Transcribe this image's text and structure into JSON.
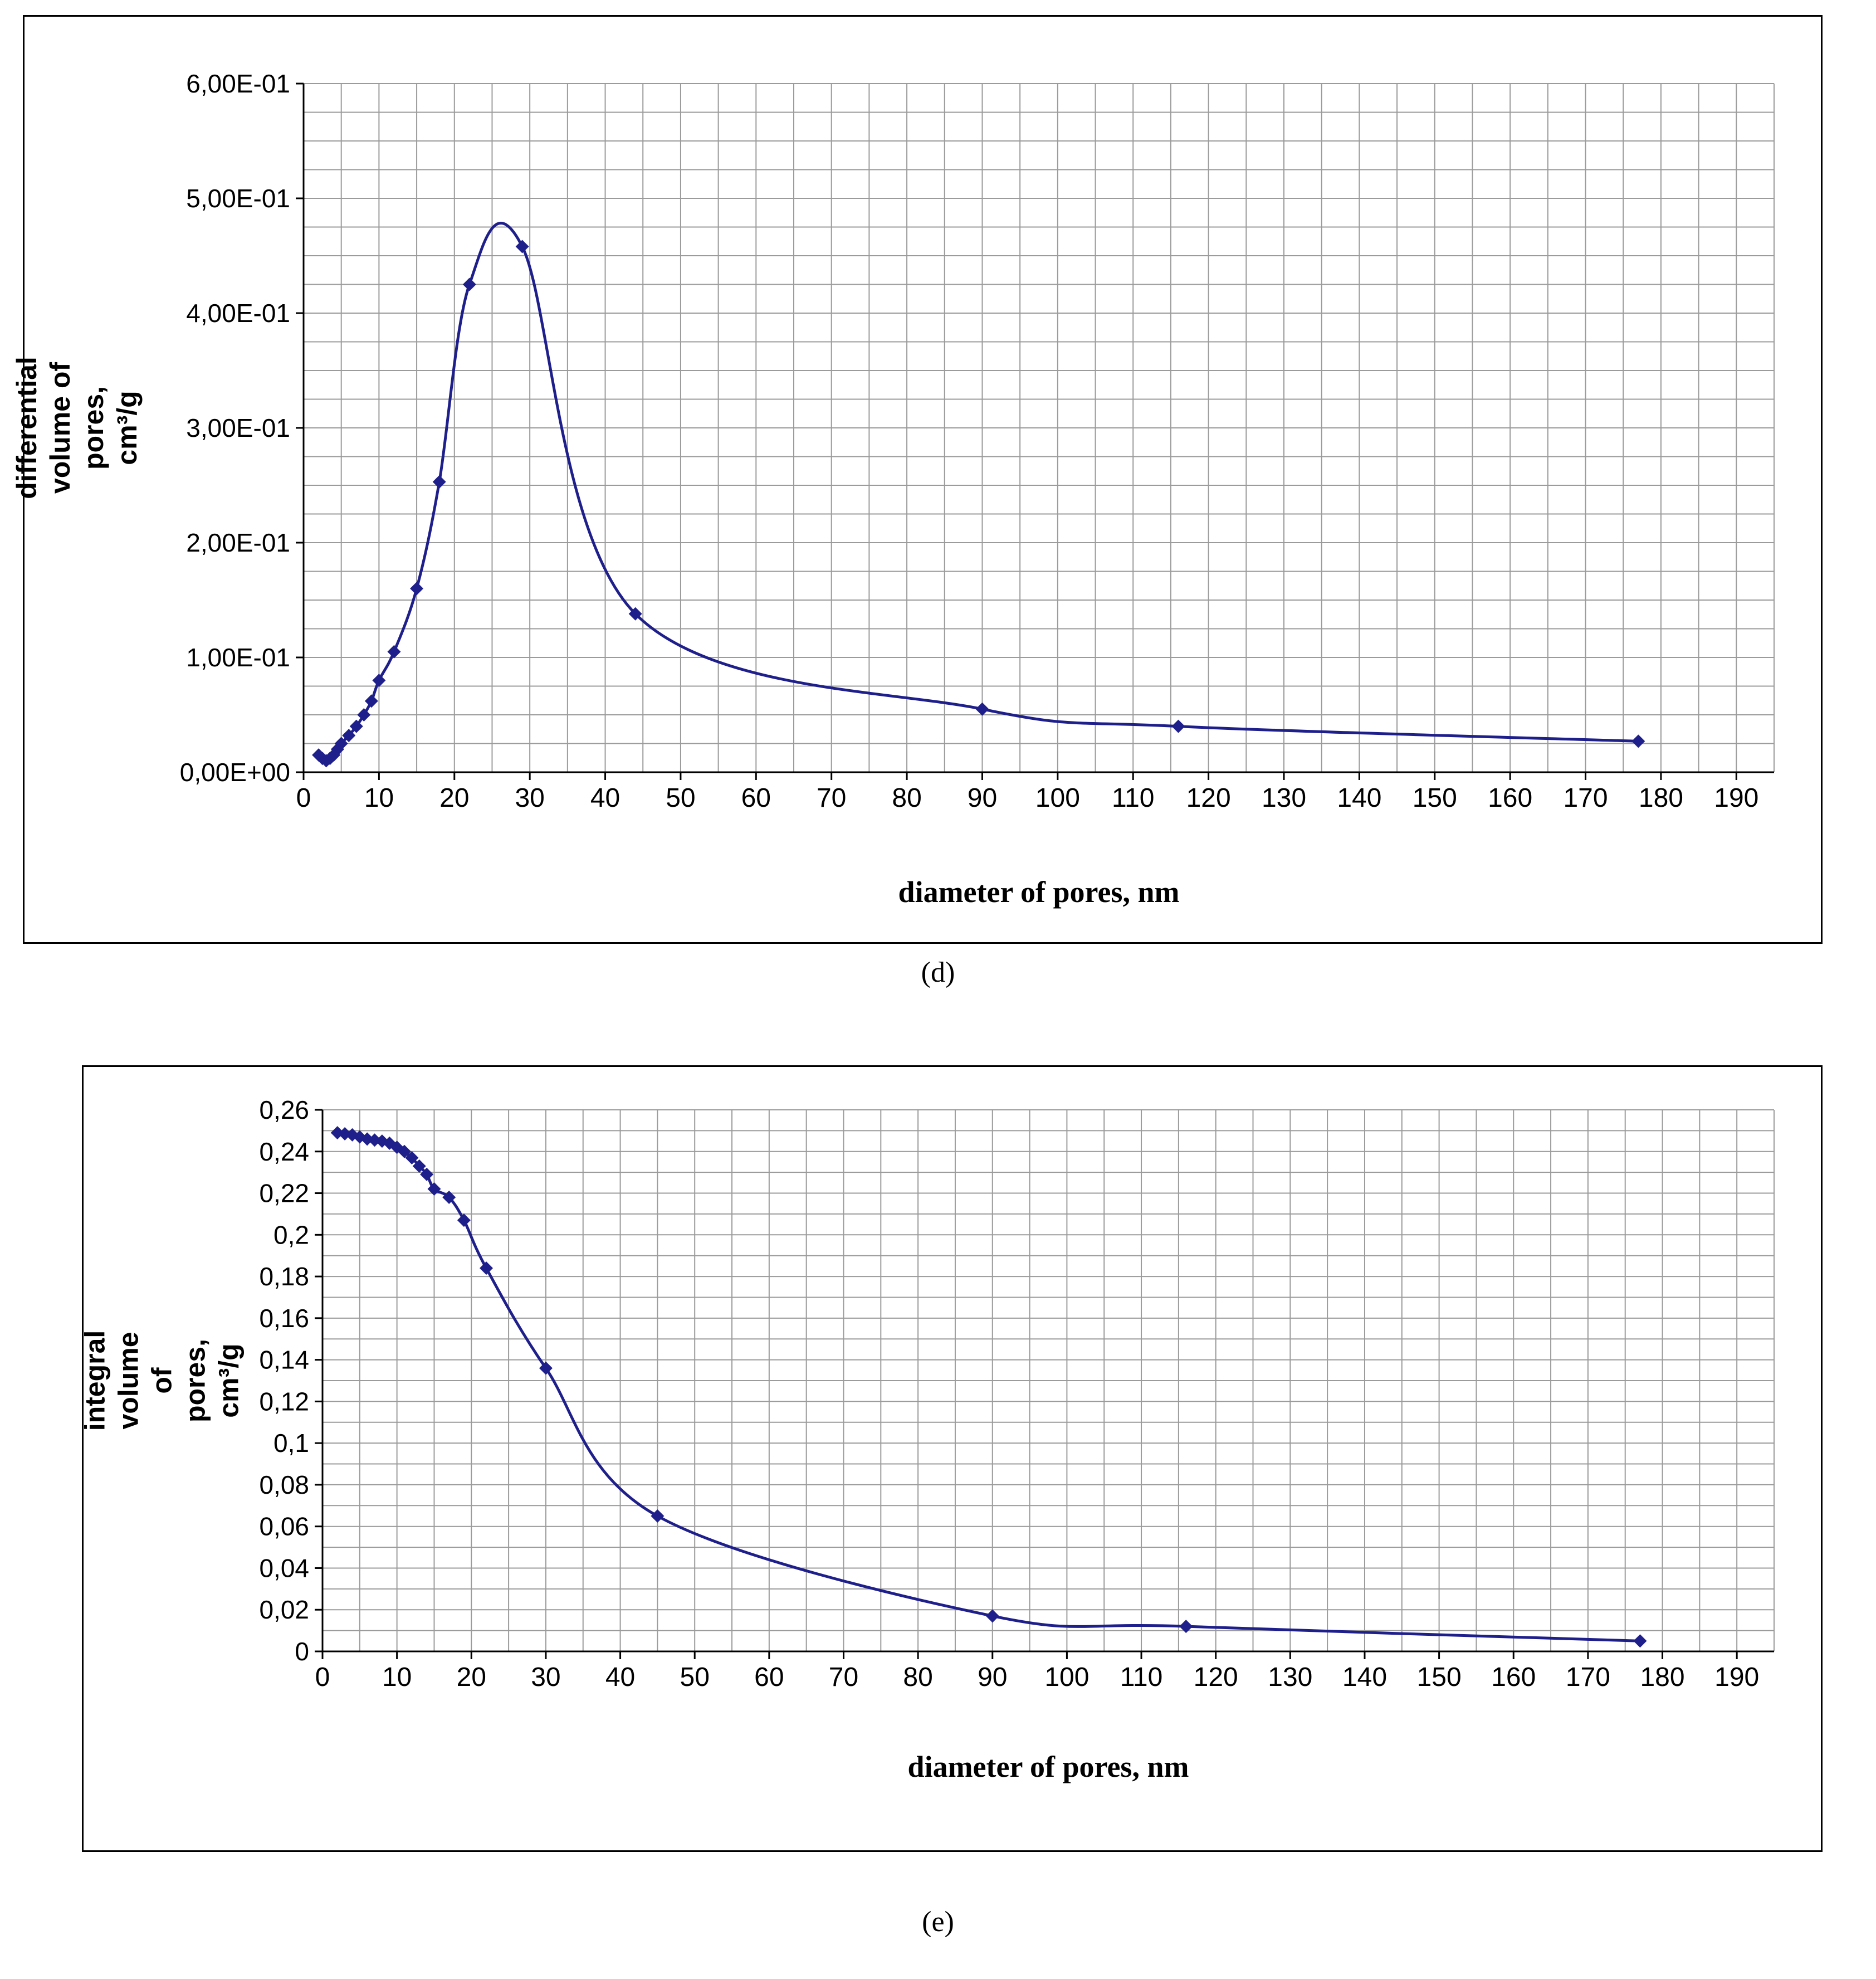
{
  "figure": {
    "captions": [
      "(d)",
      "(e)"
    ]
  },
  "chart_data": [
    {
      "type": "line",
      "title": "",
      "xlabel": "diameter of pores, nm",
      "ylabel": "differential volume of pores, cm³/g",
      "xlim": [
        0,
        195
      ],
      "ylim": [
        0,
        0.6
      ],
      "x_minor": 5,
      "y_minor": 0.025,
      "grid": true,
      "legend": "none",
      "marker": "diamond",
      "color": "#1f1f8c",
      "x_ticks": [
        0,
        10,
        20,
        30,
        40,
        50,
        60,
        70,
        80,
        90,
        100,
        110,
        120,
        130,
        140,
        150,
        160,
        170,
        180,
        190
      ],
      "y_ticks": {
        "values": [
          0,
          0.1,
          0.2,
          0.3,
          0.4,
          0.5,
          0.6
        ],
        "labels": [
          "0,00E+00",
          "1,00E-01",
          "2,00E-01",
          "3,00E-01",
          "4,00E-01",
          "5,00E-01",
          "6,00E-01"
        ]
      },
      "x": [
        2,
        2.5,
        3,
        3.5,
        4,
        4.5,
        5,
        6,
        7,
        8,
        9,
        10,
        12,
        15,
        18,
        22,
        29,
        44,
        90,
        116,
        177
      ],
      "y": [
        0.015,
        0.012,
        0.01,
        0.012,
        0.015,
        0.02,
        0.025,
        0.032,
        0.04,
        0.05,
        0.062,
        0.08,
        0.105,
        0.16,
        0.253,
        0.425,
        0.458,
        0.138,
        0.055,
        0.04,
        0.027
      ]
    },
    {
      "type": "line",
      "title": "",
      "xlabel": "diameter of pores, nm",
      "ylabel": "integral volume of pores,\ncm³/g",
      "xlim": [
        0,
        195
      ],
      "ylim": [
        0,
        0.26
      ],
      "x_minor": 5,
      "y_minor": 0.01,
      "grid": true,
      "legend": "none",
      "marker": "diamond",
      "color": "#1f1f8c",
      "x_ticks": [
        0,
        10,
        20,
        30,
        40,
        50,
        60,
        70,
        80,
        90,
        100,
        110,
        120,
        130,
        140,
        150,
        160,
        170,
        180,
        190
      ],
      "y_ticks": {
        "values": [
          0,
          0.02,
          0.04,
          0.06,
          0.08,
          0.1,
          0.12,
          0.14,
          0.16,
          0.18,
          0.2,
          0.22,
          0.24,
          0.26
        ],
        "labels": [
          "0",
          "0,02",
          "0,04",
          "0,06",
          "0,08",
          "0,1",
          "0,12",
          "0,14",
          "0,16",
          "0,18",
          "0,2",
          "0,22",
          "0,24",
          "0,26"
        ]
      },
      "x": [
        2,
        3,
        4,
        5,
        6,
        7,
        8,
        9,
        10,
        11,
        12,
        13,
        14,
        15,
        17,
        19,
        22,
        30,
        45,
        90,
        116,
        177
      ],
      "y": [
        0.249,
        0.2485,
        0.248,
        0.247,
        0.246,
        0.2455,
        0.245,
        0.244,
        0.242,
        0.24,
        0.237,
        0.233,
        0.229,
        0.222,
        0.218,
        0.207,
        0.184,
        0.136,
        0.065,
        0.017,
        0.012,
        0.005
      ]
    }
  ]
}
